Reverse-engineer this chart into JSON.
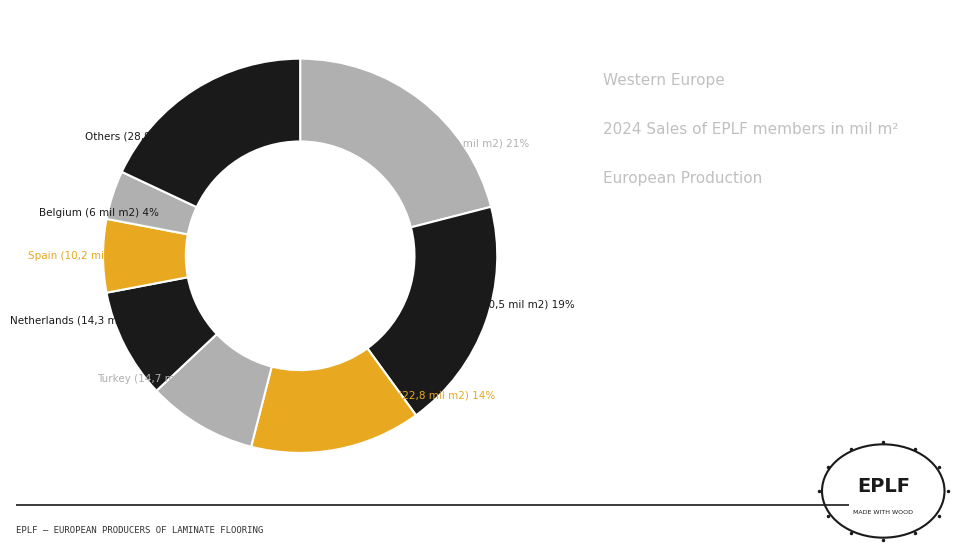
{
  "segments": [
    {
      "label": "Germany (33 mil m2) 21%",
      "value": 21,
      "color": "#b0b0b0",
      "label_color": "#b0b0b0",
      "label_side": "right"
    },
    {
      "label": "France (30,5 mil m2) 19%",
      "value": 19,
      "color": "#1a1a1a",
      "label_color": "#1a1a1a",
      "label_side": "right"
    },
    {
      "label": "Great Britain (22,8 mil m2) 14%",
      "value": 14,
      "color": "#e8a820",
      "label_color": "#e8a820",
      "label_side": "right"
    },
    {
      "label": "Turkey (14,7 mil m2) 9%",
      "value": 9,
      "color": "#b0b0b0",
      "label_color": "#b0b0b0",
      "label_side": "left"
    },
    {
      "label": "Netherlands (14,3 mil m2) 9%",
      "value": 9,
      "color": "#1a1a1a",
      "label_color": "#1a1a1a",
      "label_side": "left"
    },
    {
      "label": "Spain (10,2 mil m2) 6%",
      "value": 6,
      "color": "#e8a820",
      "label_color": "#e8a820",
      "label_side": "left"
    },
    {
      "label": "Belgium (6 mil m2) 4%",
      "value": 4,
      "color": "#b0b0b0",
      "label_color": "#1a1a1a",
      "label_side": "left"
    },
    {
      "label": "Others (28,9 mil m2) 18%",
      "value": 18,
      "color": "#1a1a1a",
      "label_color": "#1a1a1a",
      "label_side": "left"
    }
  ],
  "start_angle": 90,
  "info_text_line1": "Western Europe",
  "info_text_line2": "2024 Sales of EPLF members in mil m²",
  "info_text_line3": "European Production",
  "info_color": "#c0c0c0",
  "footer_text": "EPLF – EUROPEAN PRODUCERS OF LAMINATE FLOORING",
  "footer_color": "#333333",
  "background_color": "#ffffff"
}
